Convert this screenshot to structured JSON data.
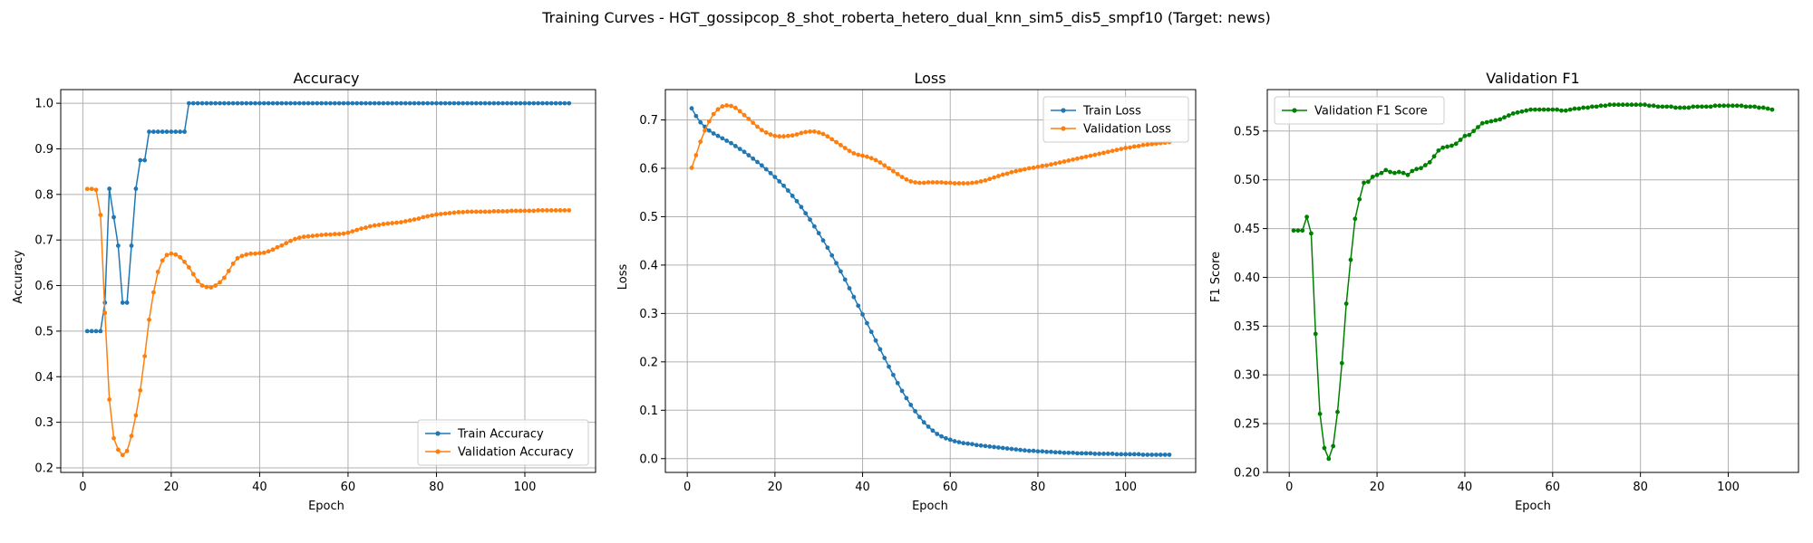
{
  "figure_title": "Training Curves - HGT_gossipcop_8_shot_roberta_hetero_dual_knn_sim5_dis5_smpf10 (Target: news)",
  "colors": {
    "blue": "#1f77b4",
    "orange": "#ff7f0e",
    "green": "#008000",
    "grid": "#b0b0b0"
  },
  "chart_data": [
    {
      "type": "line",
      "title": "Accuracy",
      "xlabel": "Epoch",
      "ylabel": "Accuracy",
      "xlim": [
        -5,
        116
      ],
      "ylim": [
        0.19,
        1.03
      ],
      "xticks": [
        0,
        20,
        40,
        60,
        80,
        100
      ],
      "yticks": [
        0.2,
        0.3,
        0.4,
        0.5,
        0.6,
        0.7,
        0.8,
        0.9,
        1.0
      ],
      "ytick_labels": [
        "0.2",
        "0.3",
        "0.4",
        "0.5",
        "0.6",
        "0.7",
        "0.8",
        "0.9",
        "1.0"
      ],
      "grid": true,
      "legend_position": "lower right",
      "series": [
        {
          "name": "Train Accuracy",
          "color": "#1f77b4",
          "x_start": 1,
          "values": [
            0.5,
            0.5,
            0.5,
            0.5,
            0.5625,
            0.8125,
            0.75,
            0.6875,
            0.5625,
            0.5625,
            0.6875,
            0.8125,
            0.875,
            0.875,
            0.9375,
            0.9375,
            0.9375,
            0.9375,
            0.9375,
            0.9375,
            0.9375,
            0.9375,
            0.9375,
            1.0,
            1.0,
            1.0,
            1.0,
            1.0,
            1.0,
            1.0,
            1.0,
            1.0,
            1.0,
            1.0,
            1.0,
            1.0,
            1.0,
            1.0,
            1.0,
            1.0,
            1.0,
            1.0,
            1.0,
            1.0,
            1.0,
            1.0,
            1.0,
            1.0,
            1.0,
            1.0,
            1.0,
            1.0,
            1.0,
            1.0,
            1.0,
            1.0,
            1.0,
            1.0,
            1.0,
            1.0,
            1.0,
            1.0,
            1.0,
            1.0,
            1.0,
            1.0,
            1.0,
            1.0,
            1.0,
            1.0,
            1.0,
            1.0,
            1.0,
            1.0,
            1.0,
            1.0,
            1.0,
            1.0,
            1.0,
            1.0,
            1.0,
            1.0,
            1.0,
            1.0,
            1.0,
            1.0,
            1.0,
            1.0,
            1.0,
            1.0,
            1.0,
            1.0,
            1.0,
            1.0,
            1.0,
            1.0,
            1.0,
            1.0,
            1.0,
            1.0,
            1.0,
            1.0,
            1.0,
            1.0,
            1.0,
            1.0,
            1.0,
            1.0,
            1.0,
            1.0
          ]
        },
        {
          "name": "Validation Accuracy",
          "color": "#ff7f0e",
          "x_start": 1,
          "values": [
            0.812,
            0.812,
            0.81,
            0.755,
            0.54,
            0.35,
            0.265,
            0.24,
            0.228,
            0.237,
            0.27,
            0.315,
            0.37,
            0.445,
            0.525,
            0.585,
            0.63,
            0.655,
            0.667,
            0.67,
            0.668,
            0.662,
            0.652,
            0.64,
            0.625,
            0.61,
            0.6,
            0.597,
            0.596,
            0.6,
            0.607,
            0.617,
            0.632,
            0.648,
            0.66,
            0.665,
            0.668,
            0.67,
            0.67,
            0.671,
            0.672,
            0.675,
            0.679,
            0.684,
            0.688,
            0.693,
            0.698,
            0.702,
            0.705,
            0.707,
            0.708,
            0.709,
            0.71,
            0.711,
            0.712,
            0.712,
            0.713,
            0.713,
            0.714,
            0.716,
            0.719,
            0.722,
            0.725,
            0.727,
            0.73,
            0.732,
            0.733,
            0.735,
            0.736,
            0.737,
            0.738,
            0.739,
            0.741,
            0.743,
            0.745,
            0.747,
            0.75,
            0.752,
            0.754,
            0.756,
            0.757,
            0.758,
            0.759,
            0.76,
            0.761,
            0.761,
            0.762,
            0.762,
            0.762,
            0.762,
            0.762,
            0.762,
            0.763,
            0.763,
            0.763,
            0.763,
            0.764,
            0.764,
            0.764,
            0.764,
            0.764,
            0.764,
            0.765,
            0.765,
            0.765,
            0.765,
            0.765,
            0.765,
            0.765,
            0.765
          ]
        }
      ]
    },
    {
      "type": "line",
      "title": "Loss",
      "xlabel": "Epoch",
      "ylabel": "Loss",
      "xlim": [
        -5,
        116
      ],
      "ylim": [
        -0.0285,
        0.7627
      ],
      "xticks": [
        0,
        20,
        40,
        60,
        80,
        100
      ],
      "yticks": [
        0.0,
        0.1,
        0.2,
        0.3,
        0.4,
        0.5,
        0.6,
        0.7
      ],
      "ytick_labels": [
        "0.0",
        "0.1",
        "0.2",
        "0.3",
        "0.4",
        "0.5",
        "0.6",
        "0.7"
      ],
      "grid": true,
      "legend_position": "upper right",
      "series": [
        {
          "name": "Train Loss",
          "color": "#1f77b4",
          "x_start": 1,
          "values": [
            0.724,
            0.708,
            0.695,
            0.686,
            0.678,
            0.672,
            0.667,
            0.662,
            0.657,
            0.652,
            0.646,
            0.64,
            0.634,
            0.627,
            0.62,
            0.613,
            0.606,
            0.598,
            0.59,
            0.582,
            0.573,
            0.564,
            0.554,
            0.543,
            0.532,
            0.52,
            0.507,
            0.494,
            0.48,
            0.466,
            0.451,
            0.436,
            0.42,
            0.404,
            0.387,
            0.37,
            0.352,
            0.334,
            0.316,
            0.298,
            0.28,
            0.262,
            0.244,
            0.226,
            0.208,
            0.19,
            0.173,
            0.156,
            0.14,
            0.125,
            0.111,
            0.098,
            0.086,
            0.075,
            0.066,
            0.058,
            0.051,
            0.046,
            0.042,
            0.039,
            0.036,
            0.034,
            0.032,
            0.031,
            0.03,
            0.028,
            0.027,
            0.026,
            0.025,
            0.024,
            0.023,
            0.022,
            0.021,
            0.02,
            0.019,
            0.018,
            0.017,
            0.016,
            0.016,
            0.015,
            0.015,
            0.014,
            0.014,
            0.013,
            0.013,
            0.012,
            0.012,
            0.012,
            0.011,
            0.011,
            0.011,
            0.011,
            0.01,
            0.01,
            0.01,
            0.01,
            0.01,
            0.009,
            0.009,
            0.009,
            0.009,
            0.009,
            0.009,
            0.008,
            0.008,
            0.008,
            0.008,
            0.008,
            0.008,
            0.008
          ]
        },
        {
          "name": "Validation Loss",
          "color": "#ff7f0e",
          "x_start": 1,
          "values": [
            0.601,
            0.627,
            0.655,
            0.678,
            0.697,
            0.712,
            0.722,
            0.728,
            0.73,
            0.729,
            0.725,
            0.718,
            0.71,
            0.702,
            0.694,
            0.686,
            0.679,
            0.674,
            0.67,
            0.667,
            0.666,
            0.666,
            0.667,
            0.668,
            0.67,
            0.673,
            0.675,
            0.676,
            0.676,
            0.674,
            0.671,
            0.666,
            0.66,
            0.654,
            0.648,
            0.642,
            0.636,
            0.631,
            0.628,
            0.626,
            0.624,
            0.621,
            0.617,
            0.612,
            0.606,
            0.6,
            0.594,
            0.588,
            0.582,
            0.577,
            0.573,
            0.571,
            0.57,
            0.57,
            0.571,
            0.571,
            0.571,
            0.571,
            0.57,
            0.57,
            0.569,
            0.569,
            0.569,
            0.569,
            0.57,
            0.571,
            0.573,
            0.575,
            0.578,
            0.581,
            0.584,
            0.587,
            0.589,
            0.592,
            0.594,
            0.596,
            0.598,
            0.6,
            0.601,
            0.603,
            0.605,
            0.606,
            0.608,
            0.61,
            0.612,
            0.614,
            0.616,
            0.618,
            0.62,
            0.622,
            0.624,
            0.626,
            0.628,
            0.63,
            0.632,
            0.634,
            0.636,
            0.638,
            0.64,
            0.642,
            0.643,
            0.645,
            0.646,
            0.648,
            0.649,
            0.65,
            0.651,
            0.652,
            0.653,
            0.654
          ]
        }
      ]
    },
    {
      "type": "line",
      "title": "Validation F1",
      "xlabel": "Epoch",
      "ylabel": "F1 Score",
      "xlim": [
        -5,
        116
      ],
      "ylim": [
        0.2,
        0.5925
      ],
      "xticks": [
        0,
        20,
        40,
        60,
        80,
        100
      ],
      "yticks": [
        0.2,
        0.25,
        0.3,
        0.35,
        0.4,
        0.45,
        0.5,
        0.55
      ],
      "ytick_labels": [
        "0.20",
        "0.25",
        "0.30",
        "0.35",
        "0.40",
        "0.45",
        "0.50",
        "0.55"
      ],
      "grid": true,
      "legend_position": "upper left",
      "series": [
        {
          "name": "Validation F1 Score",
          "color": "#008000",
          "x_start": 1,
          "values": [
            0.448,
            0.448,
            0.448,
            0.462,
            0.445,
            0.342,
            0.26,
            0.225,
            0.214,
            0.227,
            0.262,
            0.312,
            0.373,
            0.418,
            0.46,
            0.48,
            0.497,
            0.498,
            0.503,
            0.505,
            0.507,
            0.51,
            0.508,
            0.507,
            0.508,
            0.507,
            0.505,
            0.509,
            0.511,
            0.512,
            0.515,
            0.518,
            0.524,
            0.53,
            0.533,
            0.534,
            0.535,
            0.537,
            0.541,
            0.545,
            0.546,
            0.55,
            0.554,
            0.558,
            0.559,
            0.56,
            0.561,
            0.562,
            0.564,
            0.566,
            0.568,
            0.569,
            0.57,
            0.571,
            0.572,
            0.572,
            0.572,
            0.572,
            0.572,
            0.572,
            0.572,
            0.571,
            0.571,
            0.572,
            0.573,
            0.573,
            0.574,
            0.574,
            0.575,
            0.575,
            0.576,
            0.576,
            0.577,
            0.577,
            0.577,
            0.577,
            0.577,
            0.577,
            0.577,
            0.577,
            0.577,
            0.576,
            0.576,
            0.575,
            0.575,
            0.575,
            0.575,
            0.574,
            0.574,
            0.574,
            0.574,
            0.575,
            0.575,
            0.575,
            0.575,
            0.575,
            0.576,
            0.576,
            0.576,
            0.576,
            0.576,
            0.576,
            0.576,
            0.575,
            0.575,
            0.575,
            0.574,
            0.574,
            0.573,
            0.572
          ]
        }
      ]
    }
  ]
}
